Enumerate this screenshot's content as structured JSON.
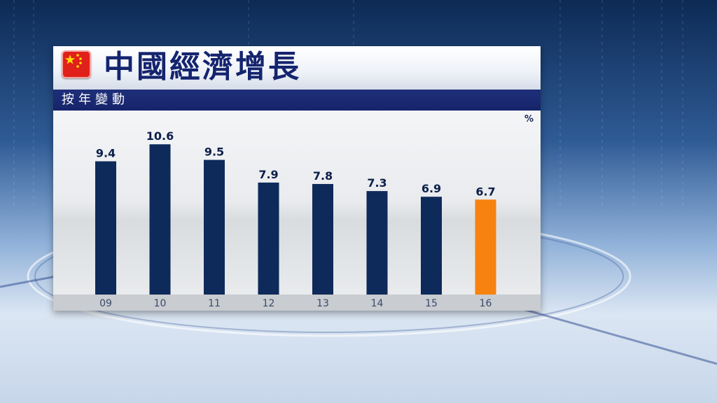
{
  "header": {
    "title": "中國經濟增長",
    "subtitle": "按年變動"
  },
  "colors": {
    "bar": "#0d2a5a",
    "highlight_bar": "#f7820f",
    "title_text": "#14246e",
    "subtitle_bar": "#1a2a72",
    "flag_red": "#e0201a",
    "flag_star": "#ffde00"
  },
  "chart_data": {
    "type": "bar",
    "title": "中國經濟增長",
    "subtitle": "按年變動",
    "unit_label": "%",
    "categories": [
      "09",
      "10",
      "11",
      "12",
      "13",
      "14",
      "15",
      "16"
    ],
    "values": [
      9.4,
      10.6,
      9.5,
      7.9,
      7.8,
      7.3,
      6.9,
      6.7
    ],
    "value_labels": [
      "9.4",
      "10.6",
      "9.5",
      "7.9",
      "7.8",
      "7.3",
      "6.9",
      "6.7"
    ],
    "highlight_index": 7,
    "ylim": [
      0,
      11.5
    ],
    "grid": false,
    "legend": "none"
  }
}
